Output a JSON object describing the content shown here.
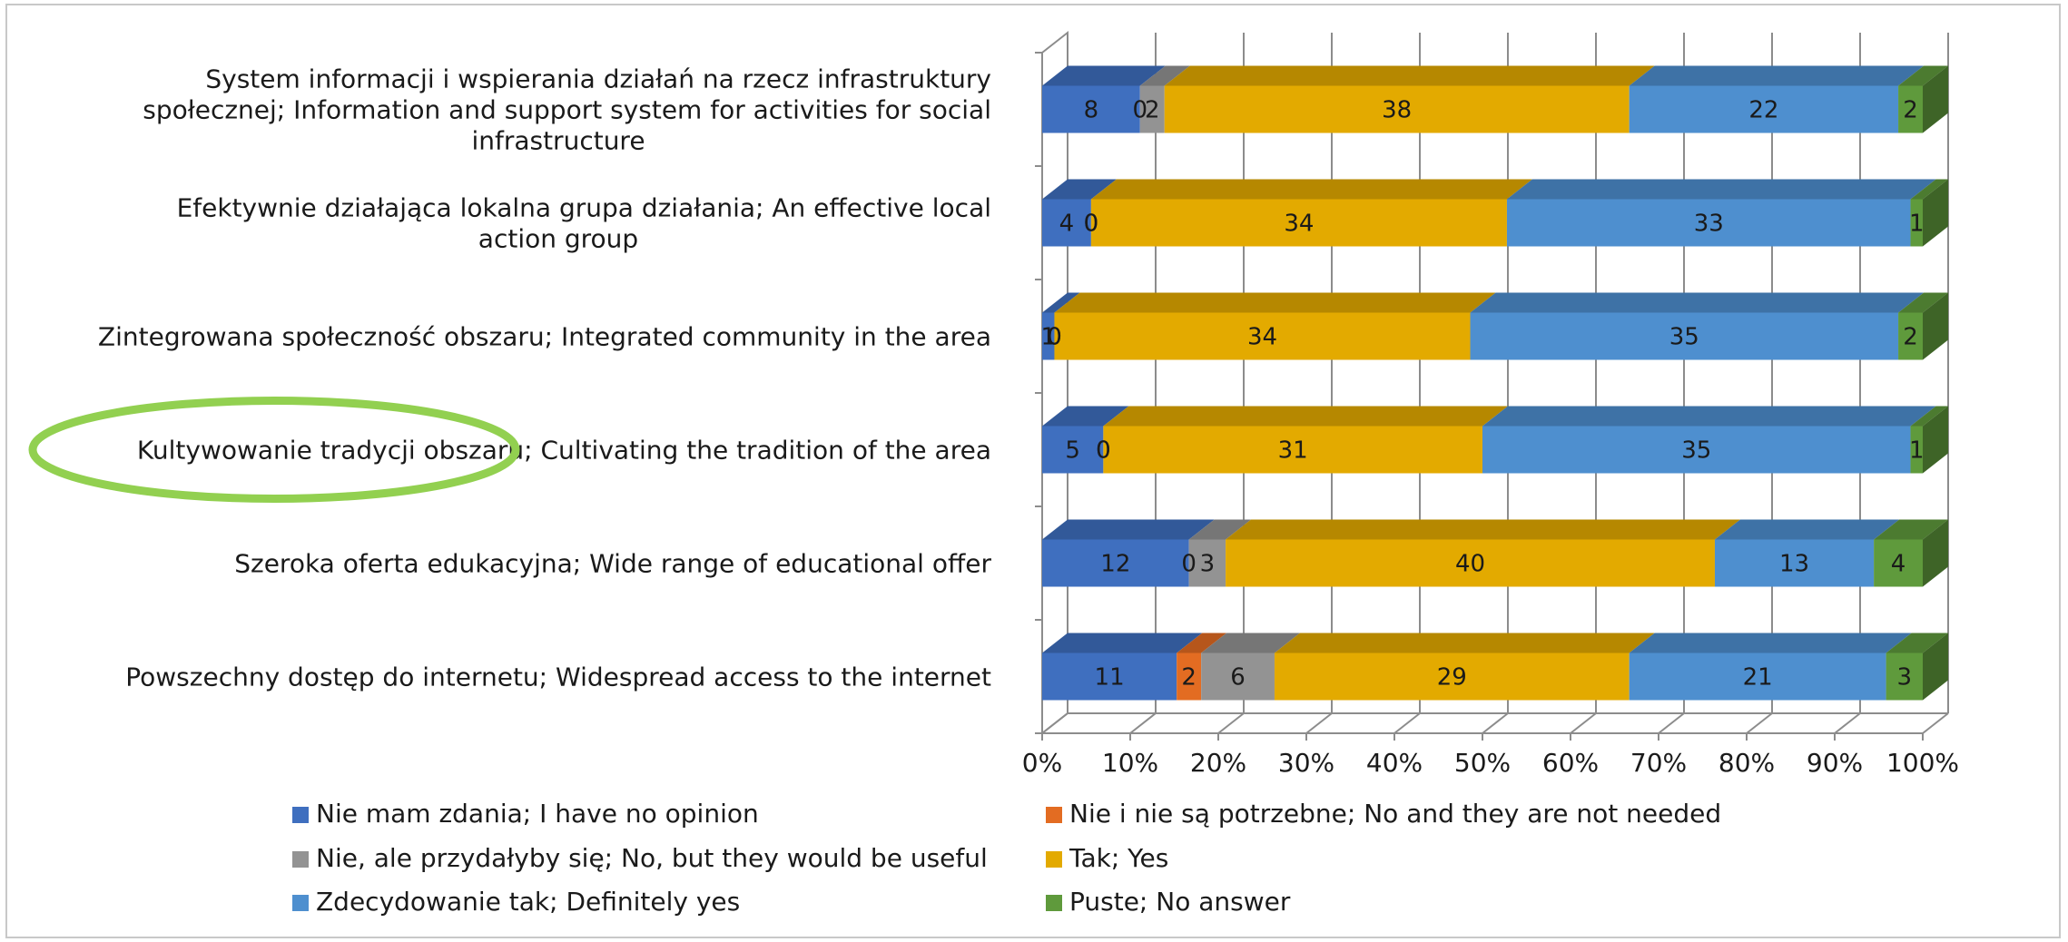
{
  "chart_data": {
    "type": "bar",
    "orientation": "horizontal",
    "stacked": "percent",
    "three_d": true,
    "title": "",
    "xlabel": "",
    "ylabel": "",
    "xlim": [
      0,
      100
    ],
    "x_ticks": [
      "0%",
      "10%",
      "20%",
      "30%",
      "40%",
      "50%",
      "60%",
      "70%",
      "80%",
      "90%",
      "100%"
    ],
    "grid": true,
    "legend_position": "bottom",
    "categories": [
      "System informacji i wspierania działań na rzecz infrastruktury społecznej; Information and support system for activities for social infrastructure",
      "Efektywnie działająca lokalna grupa działania; An effective local action group",
      "Zintegrowana społeczność obszaru; Integrated community in the area",
      "Kultywowanie tradycji obszaru; Cultivating the tradition of the area",
      "Szeroka oferta edukacyjna; Wide range of educational offer",
      "Powszechny dostęp do internetu; Widespread access to the internet"
    ],
    "category_lines": [
      [
        "System informacji i wspierania działań na rzecz infrastruktury",
        "społecznej; Information and support system for activities for social",
        "infrastructure"
      ],
      [
        "Efektywnie działająca lokalna grupa działania; An effective local",
        "action group"
      ],
      [
        "Zintegrowana społeczność obszaru; Integrated community in the area"
      ],
      [
        "Kultywowanie tradycji obszaru; Cultivating the tradition of the area"
      ],
      [
        "Szeroka oferta edukacyjna; Wide range of educational offer"
      ],
      [
        "Powszechny dostęp do internetu; Widespread access to the internet"
      ]
    ],
    "highlighted_category": "Kultywowanie tradycji obszaru; Cultivating the tradition of the area",
    "highlight_color": "#92d050",
    "series": [
      {
        "name": "Nie mam zdania; I have no opinion",
        "color": "#3f6fbf",
        "values": [
          8,
          4,
          1,
          5,
          12,
          11
        ]
      },
      {
        "name": "Nie i nie są potrzebne; No and they are not needed",
        "color": "#e36c22",
        "values": [
          0,
          0,
          0,
          0,
          0,
          2
        ]
      },
      {
        "name": "Nie, ale przydałyby się; No, but they would be useful",
        "color": "#939393",
        "values": [
          2,
          0,
          0,
          0,
          3,
          6
        ]
      },
      {
        "name": "Tak; Yes",
        "color": "#e3aa00",
        "values": [
          38,
          34,
          34,
          31,
          40,
          29
        ]
      },
      {
        "name": "Zdecydowanie tak; Definitely yes",
        "color": "#4e8fcf",
        "values": [
          22,
          33,
          35,
          35,
          13,
          21
        ]
      },
      {
        "name": "Puste; No answer",
        "color": "#5f9a3c",
        "values": [
          2,
          1,
          2,
          1,
          4,
          3
        ]
      }
    ]
  }
}
